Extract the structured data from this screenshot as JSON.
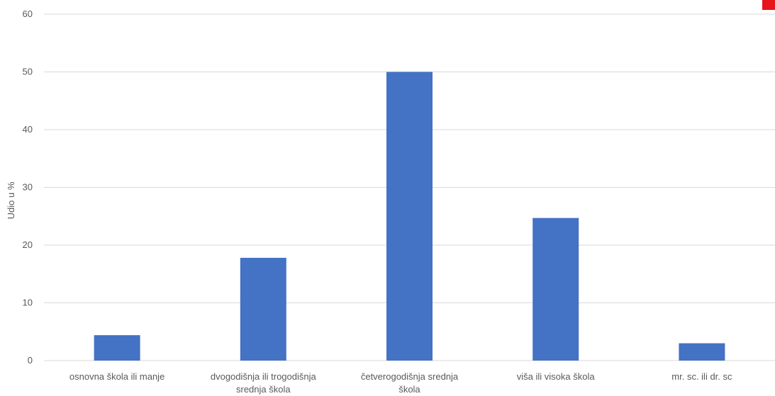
{
  "chart_data": {
    "type": "bar",
    "categories": [
      [
        "osnovna škola ili manje"
      ],
      [
        "dvogodišnja ili trogodišnja",
        "srednja škola"
      ],
      [
        "četverogodišnja srednja",
        "škola"
      ],
      [
        "viša ili visoka škola"
      ],
      [
        "mr. sc. ili dr. sc"
      ]
    ],
    "values": [
      4.4,
      17.8,
      50.0,
      24.7,
      3.0
    ],
    "title": "",
    "xlabel": "",
    "ylabel": "Udio u %",
    "ylim": [
      0,
      60
    ],
    "yticks": [
      "0",
      "10",
      "20",
      "30",
      "40",
      "50",
      "60"
    ],
    "grid": true,
    "legend": "none",
    "bar_color": "#4472C4",
    "gridline_color": "#D9D9D9",
    "text_color": "#595959"
  },
  "corner_mark_color": "#E8141B"
}
